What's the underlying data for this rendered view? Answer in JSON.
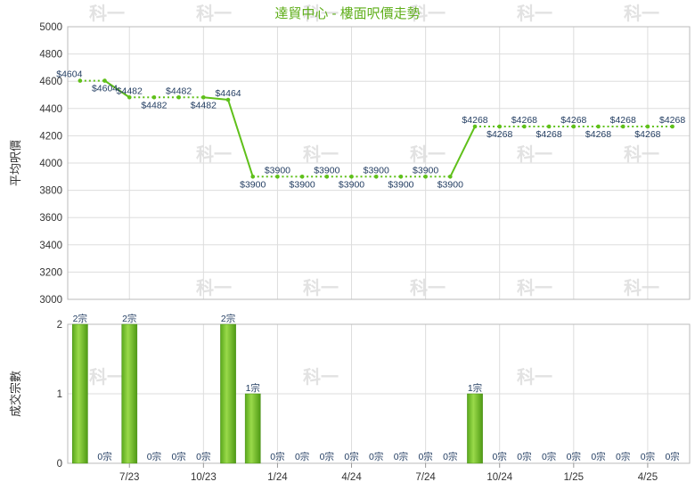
{
  "chart_data": [
    {
      "type": "line",
      "title": "達貿中心 - 樓面呎價走勢",
      "ylabel": "平均呎價",
      "ylim": [
        3000,
        5000
      ],
      "yticks": [
        3000,
        3200,
        3400,
        3600,
        3800,
        4000,
        4200,
        4400,
        4600,
        4800,
        5000
      ],
      "grid": true,
      "label_prefix": "$",
      "values": [
        4604,
        4604,
        4482,
        4482,
        4482,
        4482,
        4464,
        3900,
        3900,
        3900,
        3900,
        3900,
        3900,
        3900,
        3900,
        3900,
        4268,
        4268,
        4268,
        4268,
        4268,
        4268,
        4268,
        4268,
        4268
      ],
      "actual_trade": [
        true,
        false,
        true,
        false,
        false,
        false,
        true,
        true,
        false,
        false,
        false,
        false,
        false,
        false,
        false,
        false,
        true,
        false,
        false,
        false,
        false,
        false,
        false,
        false,
        false
      ],
      "line_color": "#5fc01a"
    },
    {
      "type": "bar",
      "ylabel": "成交宗數",
      "ylim": [
        0,
        2
      ],
      "yticks": [
        0,
        1,
        2
      ],
      "label_suffix": "宗",
      "values": [
        2,
        0,
        2,
        0,
        0,
        0,
        2,
        1,
        0,
        0,
        0,
        0,
        0,
        0,
        0,
        0,
        1,
        0,
        0,
        0,
        0,
        0,
        0,
        0,
        0
      ],
      "x_tick_labels": [
        {
          "index": 2,
          "label": "7/23"
        },
        {
          "index": 5,
          "label": "10/23"
        },
        {
          "index": 8,
          "label": "1/24"
        },
        {
          "index": 11,
          "label": "4/24"
        },
        {
          "index": 14,
          "label": "7/24"
        },
        {
          "index": 17,
          "label": "10/24"
        },
        {
          "index": 20,
          "label": "1/25"
        },
        {
          "index": 23,
          "label": "4/25"
        }
      ],
      "bar_color": "#6cbe2a"
    }
  ],
  "watermark": "科一"
}
